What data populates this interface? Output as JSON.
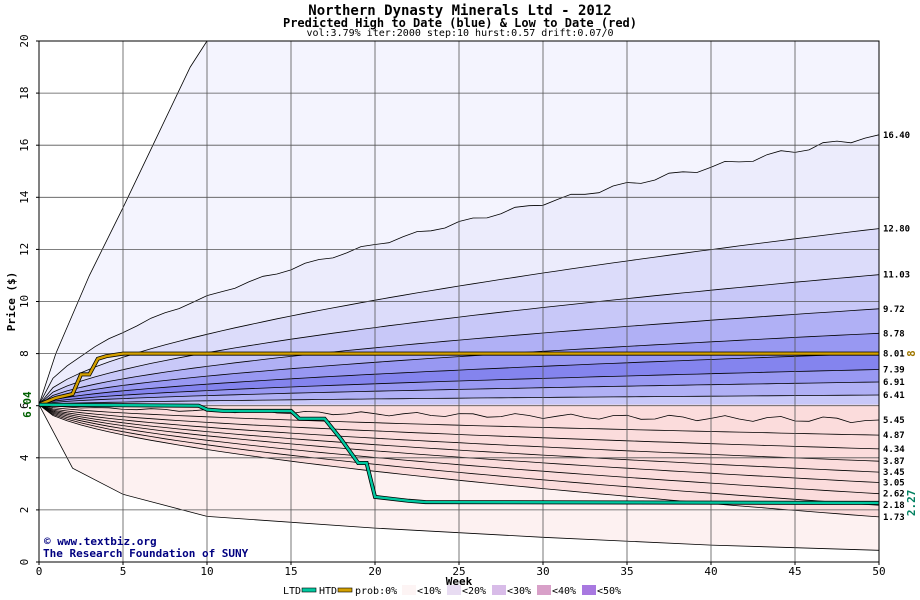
{
  "chart_data": {
    "type": "area",
    "title": "Northern Dynasty Minerals Ltd - 2012",
    "subtitle": "Predicted High to Date (blue) &  Low to Date (red)",
    "params": "vol:3.79% iter:2000 step:10 hurst:0.57 drift:0.07/0",
    "xlabel": "Week",
    "ylabel": "Price ($)",
    "xlim": [
      0,
      50
    ],
    "ylim": [
      0,
      20
    ],
    "xticks": [
      "0",
      "5",
      "10",
      "15",
      "20",
      "25",
      "30",
      "35",
      "40",
      "45",
      "50"
    ],
    "yticks": [
      "0",
      "2",
      "4",
      "6",
      "8",
      "10",
      "12",
      "14",
      "16",
      "18",
      "20"
    ],
    "grid": true,
    "start_value": 6.04,
    "start_label": "6.04",
    "high_quantiles": [
      {
        "label": "16.40",
        "end": 16.4,
        "fill": "#ececfc"
      },
      {
        "label": "12.80",
        "end": 12.8,
        "fill": "#dcdcfa"
      },
      {
        "label": "11.03",
        "end": 11.03,
        "fill": "#c8c8f8"
      },
      {
        "label": "9.72",
        "end": 9.72,
        "fill": "#b0b0f5"
      },
      {
        "label": "8.78",
        "end": 8.78,
        "fill": "#9898f2"
      },
      {
        "label": "8.01",
        "end": 8.01,
        "fill": "#8484ee"
      },
      {
        "label": "7.39",
        "end": 7.39,
        "fill": "#9898f2"
      },
      {
        "label": "6.91",
        "end": 6.91,
        "fill": "#b0b0f5"
      },
      {
        "label": "6.41",
        "end": 6.41,
        "fill": "#c8c8f8"
      }
    ],
    "low_quantiles": [
      {
        "label": "5.45",
        "end": 5.45,
        "fill": "#fbdcdc"
      },
      {
        "label": "4.87",
        "end": 4.87,
        "fill": "#f8c8c8"
      },
      {
        "label": "4.34",
        "end": 4.34,
        "fill": "#f5b0b0"
      },
      {
        "label": "3.87",
        "end": 3.87,
        "fill": "#f29898"
      },
      {
        "label": "3.45",
        "end": 3.45,
        "fill": "#ee8484"
      },
      {
        "label": "3.05",
        "end": 3.05,
        "fill": "#f29898"
      },
      {
        "label": "2.62",
        "end": 2.62,
        "fill": "#f5b0b0"
      },
      {
        "label": "2.18",
        "end": 2.18,
        "fill": "#f8c8c8"
      },
      {
        "label": "1.73",
        "end": 1.73,
        "fill": "#fbdcdc"
      }
    ],
    "extreme_high": {
      "x": [
        0,
        1,
        3,
        5,
        7,
        9,
        10
      ],
      "y": [
        6.04,
        8.0,
        11.0,
        13.6,
        16.3,
        19.0,
        20.0
      ]
    },
    "extreme_low": {
      "x": [
        0,
        2,
        5,
        10,
        20,
        30,
        40,
        50
      ],
      "y": [
        6.04,
        3.6,
        2.6,
        1.75,
        1.3,
        0.95,
        0.65,
        0.45
      ]
    },
    "htd_series": {
      "name": "HTD",
      "x": [
        0,
        1,
        2,
        2.5,
        3,
        3.5,
        4,
        5,
        50
      ],
      "y": [
        6.04,
        6.3,
        6.45,
        7.2,
        7.2,
        7.8,
        7.9,
        8.0,
        8.0
      ],
      "end_label": "8",
      "color": "#d4a000"
    },
    "ltd_series": {
      "name": "LTD",
      "x": [
        0,
        9.5,
        10,
        11,
        15,
        15.5,
        17,
        18,
        19,
        19.5,
        20,
        22,
        23,
        50
      ],
      "y": [
        6.04,
        6.0,
        5.85,
        5.8,
        5.8,
        5.5,
        5.5,
        4.7,
        3.8,
        3.8,
        2.5,
        2.35,
        2.3,
        2.27
      ],
      "end_label": "2.27",
      "color": "#00c8a0"
    },
    "legend": {
      "ltd": "LTD",
      "htd": "HTD",
      "prob_label": "prob:0%",
      "bins": [
        {
          "label": "<10%",
          "color": "#fdf4f4"
        },
        {
          "label": "<20%",
          "color": "#e8dcf2"
        },
        {
          "label": "<30%",
          "color": "#d8bce8"
        },
        {
          "label": "<40%",
          "color": "#d8a0c8"
        },
        {
          "label": "<50%",
          "color": "#a878e0"
        }
      ]
    },
    "credit_1": "www.textbiz.org",
    "credit_2": "The Research Foundation of SUNY"
  }
}
